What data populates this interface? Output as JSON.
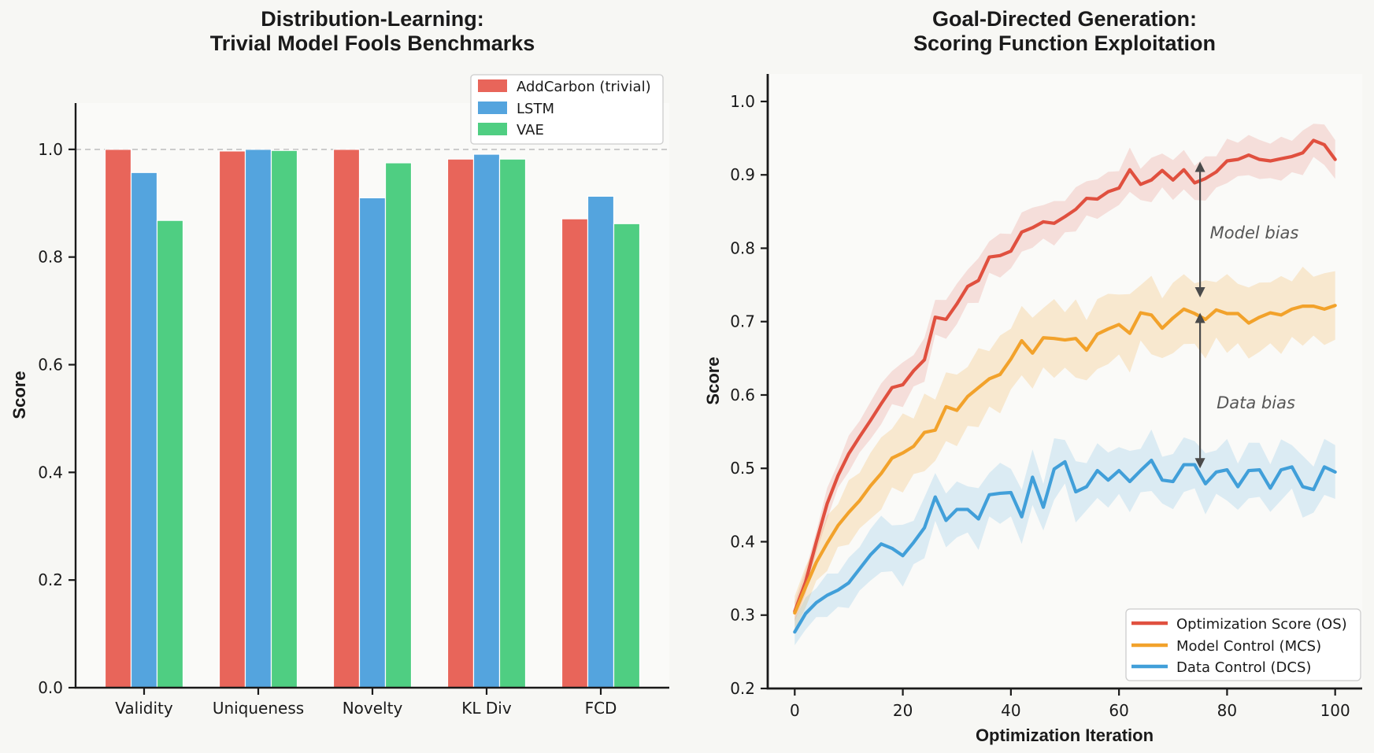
{
  "figure": {
    "background": "#F7F7F4",
    "plot_background": "#FAFAF8",
    "spine_color": "#1a1a1a",
    "annotation_color": "#565656",
    "arrow_color": "#4a4a4a",
    "reference_line_color": "#c6c6c6"
  },
  "chart_data": [
    {
      "id": "distribution-learning",
      "type": "bar",
      "title_lines": [
        "Distribution-Learning:",
        "Trivial Model Fools Benchmarks"
      ],
      "ylabel": "Score",
      "categories": [
        "Validity",
        "Uniqueness",
        "Novelty",
        "KL Div",
        "FCD"
      ],
      "series": [
        {
          "name": "AddCarbon (trivial)",
          "color": "#E8655A",
          "values": [
            1.0,
            0.997,
            1.0,
            0.982,
            0.871
          ]
        },
        {
          "name": "LSTM",
          "color": "#54A4DE",
          "values": [
            0.957,
            1.0,
            0.91,
            0.991,
            0.913
          ]
        },
        {
          "name": "VAE",
          "color": "#4FCE82",
          "values": [
            0.868,
            0.998,
            0.975,
            0.982,
            0.862
          ]
        }
      ],
      "ylim": [
        0,
        1.086
      ],
      "yticks": [
        0.0,
        0.2,
        0.4,
        0.6,
        0.8,
        1.0
      ],
      "reference_line": {
        "y": 1.0,
        "style": "dashed"
      },
      "legend_position": "upper right",
      "grid": false
    },
    {
      "id": "goal-directed",
      "type": "line",
      "title_lines": [
        "Goal-Directed Generation:",
        "Scoring Function Exploitation"
      ],
      "xlabel": "Optimization Iteration",
      "ylabel": "Score",
      "x_start": 0,
      "x_step": 2,
      "xlim": [
        -5,
        105
      ],
      "ylim": [
        0.2,
        1.0375
      ],
      "xticks": [
        0,
        20,
        40,
        60,
        80,
        100
      ],
      "yticks": [
        0.2,
        0.3,
        0.4,
        0.5,
        0.6,
        0.7,
        0.8,
        0.9,
        1.0
      ],
      "grid": false,
      "legend_position": "lower right",
      "series": [
        {
          "name": "Optimization Score (OS)",
          "color": "#E0503F",
          "band_halfwidth": 0.026,
          "values": [
            0.305,
            0.345,
            0.4,
            0.452,
            0.49,
            0.52,
            0.543,
            0.565,
            0.588,
            0.61,
            0.614,
            0.633,
            0.648,
            0.706,
            0.703,
            0.724,
            0.748,
            0.756,
            0.788,
            0.79,
            0.796,
            0.822,
            0.828,
            0.836,
            0.834,
            0.843,
            0.853,
            0.868,
            0.867,
            0.877,
            0.882,
            0.907,
            0.887,
            0.893,
            0.906,
            0.893,
            0.907,
            0.889,
            0.895,
            0.904,
            0.919,
            0.921,
            0.927,
            0.921,
            0.919,
            0.922,
            0.925,
            0.93,
            0.947,
            0.941,
            0.921
          ]
        },
        {
          "name": "Model Control (MCS)",
          "color": "#F2A22B",
          "band_halfwidth": 0.046,
          "values": [
            0.303,
            0.338,
            0.372,
            0.398,
            0.422,
            0.44,
            0.456,
            0.476,
            0.493,
            0.514,
            0.521,
            0.53,
            0.549,
            0.552,
            0.584,
            0.579,
            0.598,
            0.61,
            0.622,
            0.628,
            0.649,
            0.674,
            0.657,
            0.678,
            0.677,
            0.675,
            0.677,
            0.661,
            0.683,
            0.69,
            0.696,
            0.684,
            0.712,
            0.709,
            0.691,
            0.705,
            0.717,
            0.711,
            0.703,
            0.716,
            0.711,
            0.711,
            0.698,
            0.706,
            0.712,
            0.709,
            0.717,
            0.721,
            0.721,
            0.717,
            0.722
          ]
        },
        {
          "name": "Data Control (DCS)",
          "color": "#419FD9",
          "band_halfwidth": 0.036,
          "values": [
            0.277,
            0.302,
            0.317,
            0.327,
            0.334,
            0.344,
            0.363,
            0.382,
            0.397,
            0.391,
            0.381,
            0.399,
            0.419,
            0.461,
            0.429,
            0.444,
            0.444,
            0.431,
            0.464,
            0.466,
            0.467,
            0.434,
            0.488,
            0.447,
            0.499,
            0.509,
            0.468,
            0.475,
            0.497,
            0.484,
            0.497,
            0.482,
            0.497,
            0.511,
            0.484,
            0.482,
            0.505,
            0.505,
            0.479,
            0.495,
            0.498,
            0.475,
            0.497,
            0.498,
            0.473,
            0.498,
            0.502,
            0.475,
            0.471,
            0.502,
            0.495
          ]
        }
      ],
      "annotations": [
        {
          "text": "Model bias",
          "x": 85,
          "y": 0.821
        },
        {
          "text": "Data bias",
          "x": 85,
          "y": 0.589
        }
      ],
      "arrows": [
        {
          "x": 75,
          "y_from": 0.918,
          "y_to": 0.733
        },
        {
          "x": 75,
          "y_from": 0.712,
          "y_to": 0.5
        }
      ]
    }
  ]
}
